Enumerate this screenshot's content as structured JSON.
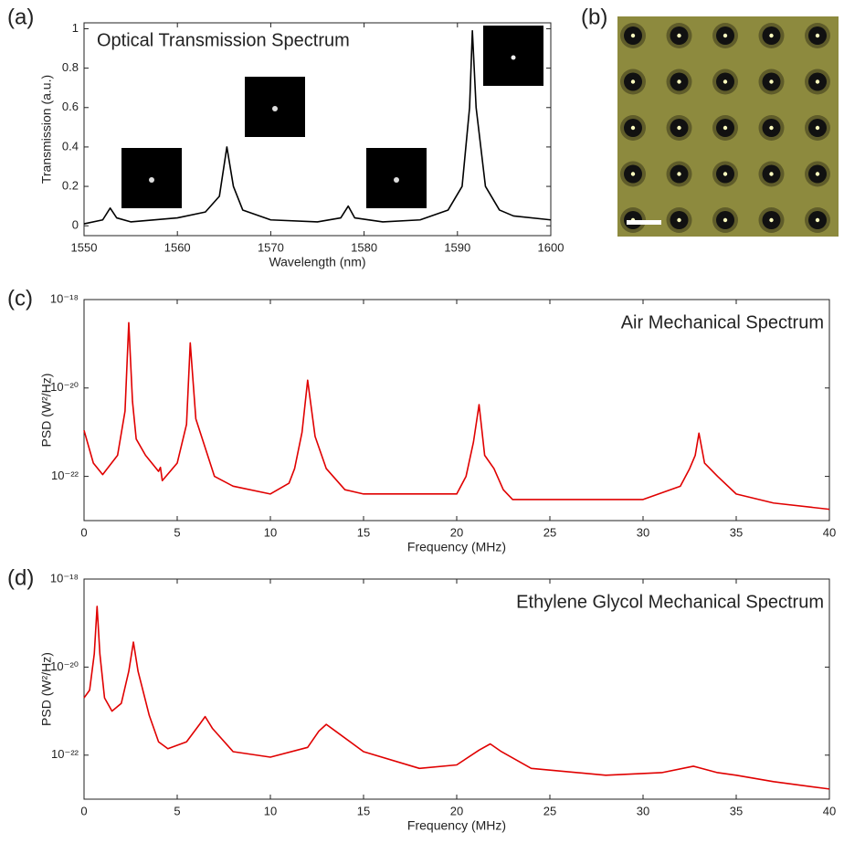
{
  "chart_data": [
    {
      "type": "line",
      "label": "(a)",
      "title": "Optical Transmission Spectrum",
      "xlabel": "Wavelength (nm)",
      "ylabel": "Transmission (a.u.)",
      "xlim": [
        1550,
        1600
      ],
      "ylim": [
        -0.05,
        1.03
      ],
      "xticks": [
        1550,
        1560,
        1570,
        1580,
        1590,
        1600
      ],
      "yticks": [
        0,
        0.2,
        0.4,
        0.6,
        0.8,
        1
      ],
      "series": [
        {
          "color": "#000000",
          "x": [
            1550,
            1552,
            1552.8,
            1553.5,
            1555,
            1560,
            1563,
            1564.5,
            1565.3,
            1566,
            1567,
            1570,
            1575,
            1577.5,
            1578.3,
            1579,
            1582,
            1586,
            1589,
            1590.5,
            1591.3,
            1591.6,
            1592,
            1593,
            1594.5,
            1596,
            1600
          ],
          "values": [
            0.01,
            0.03,
            0.09,
            0.04,
            0.02,
            0.04,
            0.07,
            0.15,
            0.4,
            0.2,
            0.08,
            0.03,
            0.02,
            0.04,
            0.1,
            0.04,
            0.02,
            0.03,
            0.08,
            0.2,
            0.6,
            0.99,
            0.6,
            0.2,
            0.08,
            0.05,
            0.03
          ]
        }
      ]
    },
    {
      "type": "line",
      "label": "(c)",
      "title": "Air Mechanical Spectrum",
      "xlabel": "Frequency (MHz)",
      "ylabel": "PSD (W²/Hz)",
      "yscale": "log",
      "xlim": [
        0,
        40
      ],
      "ylim": [
        1e-23,
        1e-18
      ],
      "xticks": [
        0,
        5,
        10,
        15,
        20,
        25,
        30,
        35,
        40
      ],
      "yticks": [
        {
          "value": 1e-18,
          "label": "10⁻¹⁸"
        },
        {
          "value": 1e-20,
          "label": "10⁻²⁰"
        },
        {
          "value": 1e-22,
          "label": "10⁻²²"
        }
      ],
      "series": [
        {
          "color": "#e00000",
          "x": [
            0,
            0.5,
            1,
            1.8,
            2.2,
            2.4,
            2.6,
            2.8,
            3.3,
            4,
            4.1,
            4.2,
            5,
            5.5,
            5.7,
            6,
            7,
            8,
            10,
            11,
            11.3,
            11.7,
            12,
            12.4,
            13,
            14,
            15,
            20,
            20.5,
            20.9,
            21.2,
            21.5,
            22,
            22.5,
            23,
            30,
            32,
            32.5,
            32.8,
            33,
            33.3,
            34,
            35,
            37,
            40
          ],
          "values": [
            1.1e-21,
            2e-22,
            1.1e-22,
            3e-22,
            3e-21,
            3e-19,
            5e-21,
            7e-22,
            3e-22,
            1.3e-22,
            1.6e-22,
            8e-23,
            2e-22,
            1.5e-21,
            1.05e-19,
            2e-21,
            1e-22,
            6e-23,
            4e-23,
            7e-23,
            1.5e-22,
            1e-21,
            1.5e-20,
            8e-22,
            1.5e-22,
            5e-23,
            4e-23,
            4e-23,
            1e-22,
            6e-22,
            4.2e-21,
            3e-22,
            1.5e-22,
            5e-23,
            3e-23,
            3e-23,
            6e-23,
            1.5e-22,
            3e-22,
            9.5e-22,
            2e-22,
            1e-22,
            4e-23,
            2.5e-23,
            1.8e-23
          ]
        }
      ]
    },
    {
      "type": "line",
      "label": "(d)",
      "title": "Ethylene Glycol Mechanical Spectrum",
      "xlabel": "Frequency (MHz)",
      "ylabel": "PSD (W²/Hz)",
      "yscale": "log",
      "xlim": [
        0,
        40
      ],
      "ylim": [
        1e-23,
        1e-18
      ],
      "xticks": [
        0,
        5,
        10,
        15,
        20,
        25,
        30,
        35,
        40
      ],
      "yticks": [
        {
          "value": 1e-18,
          "label": "10⁻¹⁸"
        },
        {
          "value": 1e-20,
          "label": "10⁻²⁰"
        },
        {
          "value": 1e-22,
          "label": "10⁻²²"
        }
      ],
      "series": [
        {
          "color": "#e00000",
          "x": [
            0,
            0.3,
            0.55,
            0.7,
            0.85,
            1.1,
            1.5,
            2,
            2.4,
            2.65,
            2.9,
            3.5,
            4,
            4.5,
            5.5,
            6.2,
            6.5,
            6.9,
            8,
            10,
            12,
            12.6,
            13,
            13.5,
            15,
            18,
            20,
            21.2,
            21.8,
            22.4,
            24,
            28,
            31,
            32.7,
            34,
            35,
            37,
            40
          ],
          "values": [
            2e-21,
            3e-21,
            2e-20,
            2.4e-19,
            2e-20,
            2e-21,
            1e-21,
            1.5e-21,
            8e-21,
            3.7e-20,
            8e-21,
            8e-22,
            2e-22,
            1.4e-22,
            2e-22,
            5e-22,
            7.5e-22,
            4e-22,
            1.2e-22,
            9e-23,
            1.5e-22,
            3.5e-22,
            5e-22,
            3.5e-22,
            1.2e-22,
            5e-23,
            6e-23,
            1.3e-22,
            1.8e-22,
            1.2e-22,
            5e-23,
            3.5e-23,
            4e-23,
            5.6e-23,
            4e-23,
            3.5e-23,
            2.5e-23,
            1.7e-23
          ]
        }
      ]
    }
  ],
  "image_panel": {
    "label": "(b)"
  }
}
